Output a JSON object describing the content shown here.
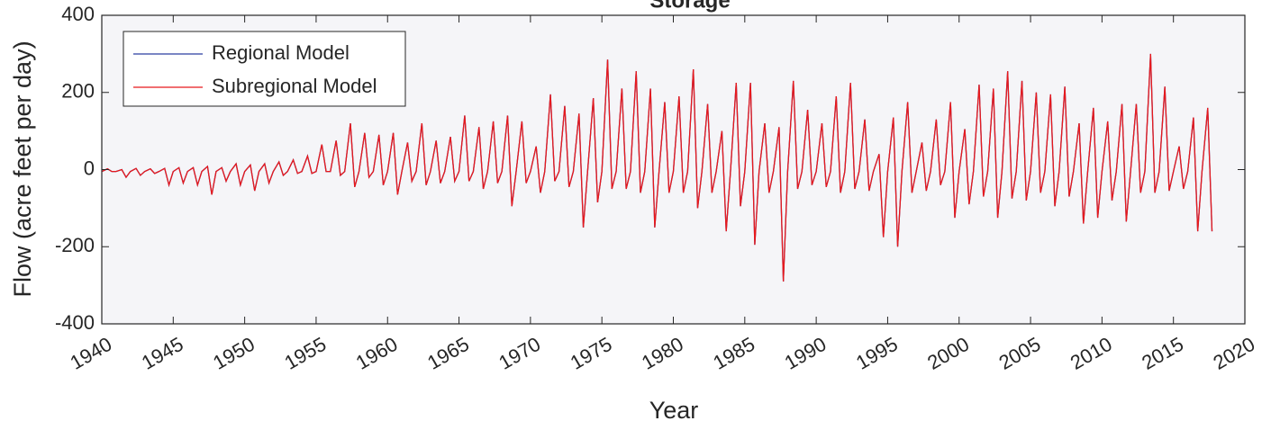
{
  "chart_data": {
    "type": "line",
    "title": "Storage",
    "x_label": "Year",
    "y_label": "Flow (acre feet per day)",
    "xlim": [
      1940,
      2020
    ],
    "xticks": [
      1940,
      1945,
      1950,
      1955,
      1960,
      1965,
      1970,
      1975,
      1980,
      1985,
      1990,
      1995,
      2000,
      2005,
      2010,
      2015,
      2020
    ],
    "ylim": [
      -400,
      400
    ],
    "yticks": [
      -400,
      -200,
      0,
      200,
      400
    ],
    "legend": "upper left",
    "x": [
      1940,
      1940.4,
      1940.7,
      1941,
      1941.4,
      1941.7,
      1942,
      1942.4,
      1942.7,
      1943,
      1943.4,
      1943.7,
      1944,
      1944.4,
      1944.7,
      1945,
      1945.4,
      1945.7,
      1946,
      1946.4,
      1946.7,
      1947,
      1947.4,
      1947.7,
      1948,
      1948.4,
      1948.7,
      1949,
      1949.4,
      1949.7,
      1950,
      1950.4,
      1950.7,
      1951,
      1951.4,
      1951.7,
      1952,
      1952.4,
      1952.7,
      1953,
      1953.4,
      1953.7,
      1954,
      1954.4,
      1954.7,
      1955,
      1955.4,
      1955.7,
      1956,
      1956.4,
      1956.7,
      1957,
      1957.4,
      1957.7,
      1958,
      1958.4,
      1958.7,
      1959,
      1959.4,
      1959.7,
      1960,
      1960.4,
      1960.7,
      1961,
      1961.4,
      1961.7,
      1962,
      1962.4,
      1962.7,
      1963,
      1963.4,
      1963.7,
      1964,
      1964.4,
      1964.7,
      1965,
      1965.4,
      1965.7,
      1966,
      1966.4,
      1966.7,
      1967,
      1967.4,
      1967.7,
      1968,
      1968.4,
      1968.7,
      1969,
      1969.4,
      1969.7,
      1970,
      1970.4,
      1970.7,
      1971,
      1971.4,
      1971.7,
      1972,
      1972.4,
      1972.7,
      1973,
      1973.4,
      1973.7,
      1974,
      1974.4,
      1974.7,
      1975,
      1975.4,
      1975.7,
      1976,
      1976.4,
      1976.7,
      1977,
      1977.4,
      1977.7,
      1978,
      1978.4,
      1978.7,
      1979,
      1979.4,
      1979.7,
      1980,
      1980.4,
      1980.7,
      1981,
      1981.4,
      1981.7,
      1982,
      1982.4,
      1982.7,
      1983,
      1983.4,
      1983.7,
      1984,
      1984.4,
      1984.7,
      1985,
      1985.4,
      1985.7,
      1986,
      1986.4,
      1986.7,
      1987,
      1987.4,
      1987.7,
      1988,
      1988.4,
      1988.7,
      1989,
      1989.4,
      1989.7,
      1990,
      1990.4,
      1990.7,
      1991,
      1991.4,
      1991.7,
      1992,
      1992.4,
      1992.7,
      1993,
      1993.4,
      1993.7,
      1994,
      1994.4,
      1994.7,
      1995,
      1995.4,
      1995.7,
      1996,
      1996.4,
      1996.7,
      1997,
      1997.4,
      1997.7,
      1998,
      1998.4,
      1998.7,
      1999,
      1999.4,
      1999.7,
      2000,
      2000.4,
      2000.7,
      2001,
      2001.4,
      2001.7,
      2002,
      2002.4,
      2002.7,
      2003,
      2003.4,
      2003.7,
      2004,
      2004.4,
      2004.7,
      2005,
      2005.4,
      2005.7,
      2006,
      2006.4,
      2006.7,
      2007,
      2007.4,
      2007.7,
      2008,
      2008.4,
      2008.7,
      2009,
      2009.4,
      2009.7,
      2010,
      2010.4,
      2010.7,
      2011,
      2011.4,
      2011.7,
      2012,
      2012.4,
      2012.7,
      2013,
      2013.4,
      2013.7,
      2014,
      2014.4,
      2014.7,
      2015,
      2015.4,
      2015.7,
      2016,
      2016.4,
      2016.7,
      2017,
      2017.4,
      2017.7
    ],
    "series": [
      {
        "name": "Regional Model",
        "color": "#2b3fa0",
        "values": [
          -5,
          2,
          -5,
          -5,
          0,
          -20,
          -5,
          3,
          -15,
          -5,
          2,
          -10,
          -5,
          3,
          -40,
          -5,
          5,
          -35,
          -5,
          5,
          -40,
          -5,
          8,
          -65,
          -5,
          5,
          -30,
          -5,
          15,
          -40,
          -5,
          12,
          -55,
          -5,
          15,
          -35,
          -5,
          20,
          -15,
          -5,
          25,
          -10,
          -5,
          35,
          -10,
          -5,
          65,
          -5,
          -5,
          75,
          -15,
          -5,
          120,
          -45,
          -5,
          95,
          -20,
          -5,
          90,
          -40,
          -5,
          95,
          -65,
          -5,
          70,
          -30,
          -5,
          120,
          -40,
          -5,
          75,
          -35,
          -5,
          85,
          -30,
          -5,
          140,
          -30,
          -5,
          110,
          -50,
          -5,
          125,
          -35,
          -5,
          140,
          -95,
          -5,
          125,
          -35,
          -5,
          60,
          -60,
          -5,
          195,
          -30,
          -5,
          165,
          -45,
          -5,
          145,
          -150,
          -5,
          185,
          -85,
          -5,
          285,
          -50,
          -5,
          210,
          -50,
          -5,
          255,
          -60,
          -5,
          210,
          -150,
          -5,
          175,
          -60,
          -5,
          190,
          -60,
          -5,
          260,
          -100,
          -5,
          170,
          -60,
          -5,
          100,
          -160,
          -5,
          225,
          -95,
          -5,
          225,
          -195,
          -5,
          120,
          -60,
          -5,
          110,
          -290,
          -5,
          230,
          -50,
          -5,
          155,
          -40,
          -5,
          120,
          -45,
          -5,
          190,
          -60,
          -5,
          225,
          -50,
          -5,
          130,
          -55,
          -5,
          40,
          -175,
          -5,
          135,
          -200,
          -5,
          175,
          -60,
          -5,
          70,
          -55,
          -5,
          130,
          -40,
          -5,
          175,
          -125,
          -5,
          105,
          -90,
          -5,
          220,
          -70,
          -5,
          210,
          -125,
          -5,
          255,
          -75,
          -5,
          230,
          -80,
          -5,
          200,
          -60,
          -5,
          195,
          -95,
          -5,
          215,
          -70,
          -5,
          120,
          -140,
          -5,
          160,
          -125,
          -5,
          125,
          -80,
          -5,
          170,
          -135,
          -5,
          170,
          -60,
          -5,
          300,
          -60,
          -5,
          215,
          -55,
          -5,
          60,
          -50,
          -5,
          135,
          -160,
          -5,
          160,
          -160
        ]
      },
      {
        "name": "Subregional Model",
        "color": "#e8191c",
        "values": [
          -5,
          2,
          -5,
          -5,
          0,
          -20,
          -5,
          3,
          -15,
          -5,
          2,
          -10,
          -5,
          3,
          -40,
          -5,
          5,
          -35,
          -5,
          5,
          -40,
          -5,
          8,
          -65,
          -5,
          5,
          -30,
          -5,
          15,
          -40,
          -5,
          12,
          -55,
          -5,
          15,
          -35,
          -5,
          20,
          -15,
          -5,
          25,
          -10,
          -5,
          35,
          -10,
          -5,
          65,
          -5,
          -5,
          75,
          -15,
          -5,
          120,
          -45,
          -5,
          95,
          -20,
          -5,
          90,
          -40,
          -5,
          95,
          -65,
          -5,
          70,
          -30,
          -5,
          120,
          -40,
          -5,
          75,
          -35,
          -5,
          85,
          -30,
          -5,
          140,
          -30,
          -5,
          110,
          -50,
          -5,
          125,
          -35,
          -5,
          140,
          -95,
          -5,
          125,
          -35,
          -5,
          60,
          -60,
          -5,
          195,
          -30,
          -5,
          165,
          -45,
          -5,
          145,
          -150,
          -5,
          185,
          -85,
          -5,
          285,
          -50,
          -5,
          210,
          -50,
          -5,
          255,
          -60,
          -5,
          210,
          -150,
          -5,
          175,
          -60,
          -5,
          190,
          -60,
          -5,
          260,
          -100,
          -5,
          170,
          -60,
          -5,
          100,
          -160,
          -5,
          225,
          -95,
          -5,
          225,
          -195,
          -5,
          120,
          -60,
          -5,
          110,
          -290,
          -5,
          230,
          -50,
          -5,
          155,
          -40,
          -5,
          120,
          -45,
          -5,
          190,
          -60,
          -5,
          225,
          -50,
          -5,
          130,
          -55,
          -5,
          40,
          -175,
          -5,
          135,
          -200,
          -5,
          175,
          -60,
          -5,
          70,
          -55,
          -5,
          130,
          -40,
          -5,
          175,
          -125,
          -5,
          105,
          -90,
          -5,
          220,
          -70,
          -5,
          210,
          -125,
          -5,
          255,
          -75,
          -5,
          230,
          -80,
          -5,
          200,
          -60,
          -5,
          195,
          -95,
          -5,
          215,
          -70,
          -5,
          120,
          -140,
          -5,
          160,
          -125,
          -5,
          125,
          -80,
          -5,
          170,
          -135,
          -5,
          170,
          -60,
          -5,
          300,
          -60,
          -5,
          215,
          -55,
          -5,
          60,
          -50,
          -5,
          135,
          -160,
          -5,
          160,
          -160
        ]
      }
    ]
  }
}
